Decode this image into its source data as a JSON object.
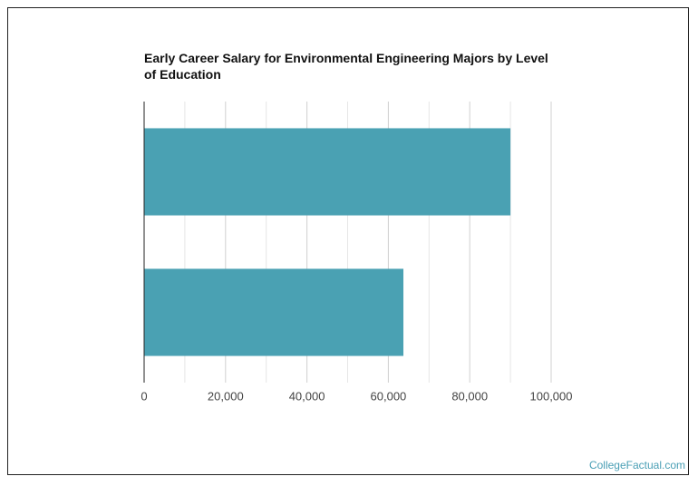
{
  "chart_data": {
    "type": "bar",
    "orientation": "horizontal",
    "title": "Early Career Salary for Environmental Engineering Majors by Level of Education",
    "categories": [
      null,
      null
    ],
    "values": [
      90000,
      63700
    ],
    "color": "#4aa1b3",
    "xlim": [
      0,
      100000
    ],
    "xticks": [
      0,
      {
        "value": 20000,
        "label": "20,000"
      },
      {
        "value": 40000,
        "label": "40,000"
      },
      {
        "value": 60000,
        "label": "60,000"
      },
      {
        "value": 80000,
        "label": "80,000"
      },
      {
        "value": 100000,
        "label": "100,000"
      }
    ],
    "minor_xticks": [
      10000,
      30000,
      50000,
      70000,
      90000
    ],
    "grid": true,
    "source": "CollegeFactual.com"
  }
}
